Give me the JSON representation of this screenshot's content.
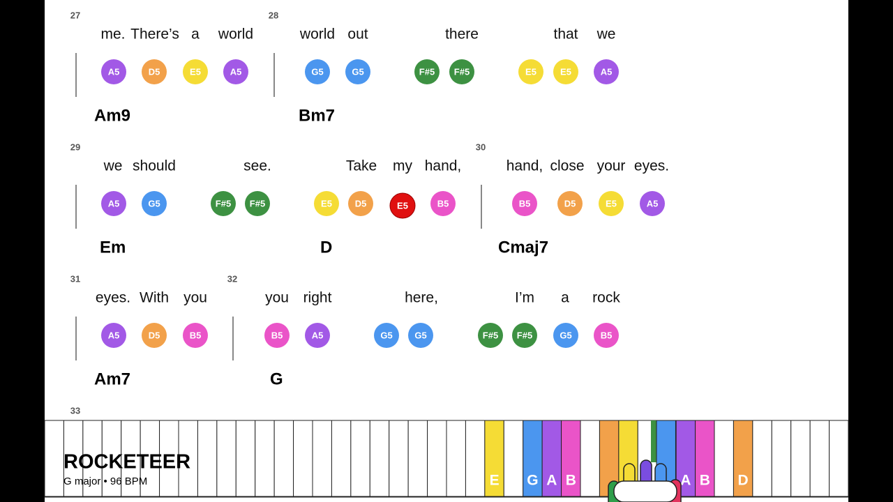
{
  "rows": [
    {
      "measures": [
        {
          "number": "27",
          "chord": "Am9"
        },
        {
          "number": "28",
          "chord": "Bm7"
        }
      ],
      "lyrics": [
        "me.",
        "There’s",
        "a",
        "world",
        "world",
        "out",
        "there",
        "that",
        "we"
      ],
      "notes": [
        {
          "label": "A5",
          "color": "#a259e6"
        },
        {
          "label": "D5",
          "color": "#f2a14a"
        },
        {
          "label": "E5",
          "color": "#f5dc35"
        },
        {
          "label": "A5",
          "color": "#a259e6"
        },
        {
          "label": "G5",
          "color": "#4b96ef"
        },
        {
          "label": "G5",
          "color": "#4b96ef"
        },
        {
          "label": "F#5",
          "color": "#3d9142"
        },
        {
          "label": "F#5",
          "color": "#3d9142"
        },
        {
          "label": "E5",
          "color": "#f5dc35"
        },
        {
          "label": "E5",
          "color": "#f5dc35"
        },
        {
          "label": "A5",
          "color": "#a259e6"
        }
      ]
    },
    {
      "measures": [
        {
          "number": "29",
          "chord": "Em"
        },
        {
          "number": "30",
          "chord": "Cmaj7"
        }
      ],
      "extra_chords": [
        "D"
      ],
      "lyrics": [
        "we",
        "should",
        "see.",
        "Take",
        {
          "text": "my",
          "color": "#d01010"
        },
        "hand,",
        "hand,",
        "close",
        "your",
        "eyes."
      ],
      "notes": [
        {
          "label": "A5",
          "color": "#a259e6"
        },
        {
          "label": "G5",
          "color": "#4b96ef"
        },
        {
          "label": "F#5",
          "color": "#3d9142"
        },
        {
          "label": "F#5",
          "color": "#3d9142"
        },
        {
          "label": "E5",
          "color": "#f5dc35"
        },
        {
          "label": "D5",
          "color": "#f2a14a"
        },
        {
          "label": "E5",
          "color": "#e01010"
        },
        {
          "label": "B5",
          "color": "#ea54c8"
        },
        {
          "label": "B5",
          "color": "#ea54c8"
        },
        {
          "label": "D5",
          "color": "#f2a14a"
        },
        {
          "label": "E5",
          "color": "#f5dc35"
        },
        {
          "label": "A5",
          "color": "#a259e6"
        }
      ]
    },
    {
      "measures": [
        {
          "number": "31",
          "chord": "Am7"
        },
        {
          "number": "32",
          "chord": "G"
        }
      ],
      "lyrics": [
        "eyes.",
        "With",
        "you",
        "you",
        "right",
        "here,",
        "I’m",
        "a",
        "rock"
      ],
      "notes": [
        {
          "label": "A5",
          "color": "#a259e6"
        },
        {
          "label": "D5",
          "color": "#f2a14a"
        },
        {
          "label": "B5",
          "color": "#ea54c8"
        },
        {
          "label": "B5",
          "color": "#ea54c8"
        },
        {
          "label": "A5",
          "color": "#a259e6"
        },
        {
          "label": "G5",
          "color": "#4b96ef"
        },
        {
          "label": "G5",
          "color": "#4b96ef"
        },
        {
          "label": "F#5",
          "color": "#3d9142"
        },
        {
          "label": "F#5",
          "color": "#3d9142"
        },
        {
          "label": "G5",
          "color": "#4b96ef"
        },
        {
          "label": "B5",
          "color": "#ea54c8"
        }
      ]
    }
  ],
  "next_measure": "33",
  "title": "ROCKETEER",
  "subtitle": "G major • 96 BPM",
  "keyboard": {
    "keys": [
      {
        "label": "E",
        "color": "#f5dc35"
      },
      {
        "label": "G",
        "color": "#4b96ef"
      },
      {
        "label": "A",
        "color": "#a259e6"
      },
      {
        "label": "B",
        "color": "#ea54c8"
      },
      {
        "color": "#f2a14a"
      },
      {
        "color": "#f5dc35"
      },
      {
        "label": "A",
        "color": "#a259e6"
      },
      {
        "label": "B",
        "color": "#ea54c8"
      },
      {
        "label": "D",
        "color": "#f2a14a"
      }
    ]
  }
}
